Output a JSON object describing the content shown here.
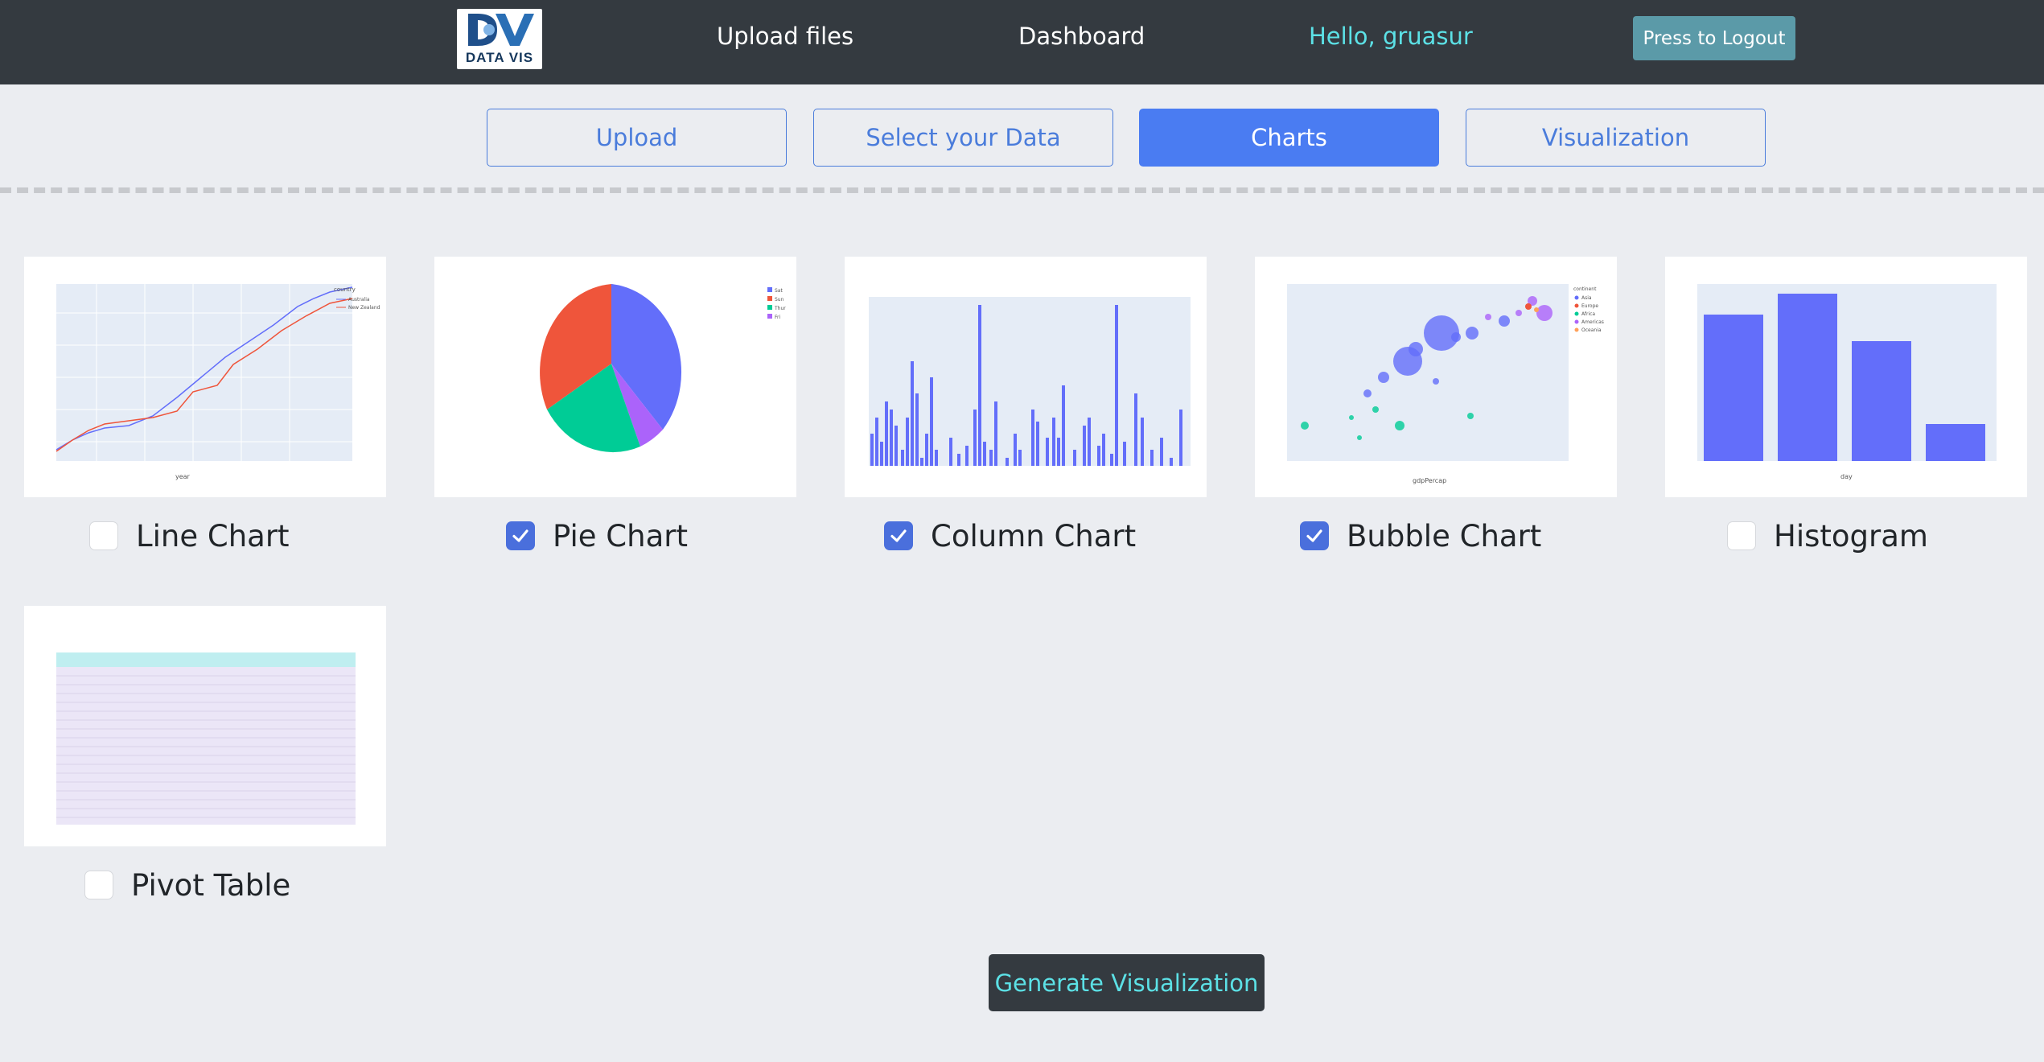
{
  "navbar": {
    "logo_text": "DATA VIS",
    "links": [
      "Upload files",
      "Dashboard"
    ],
    "greeting": "Hello, gruasur",
    "logout_label": "Press to Logout"
  },
  "steps": [
    {
      "label": "Upload",
      "active": false
    },
    {
      "label": "Select your Data",
      "active": false
    },
    {
      "label": "Charts",
      "active": true
    },
    {
      "label": "Visualization",
      "active": false
    }
  ],
  "charts": [
    {
      "label": "Line Chart",
      "checked": false
    },
    {
      "label": "Pie Chart",
      "checked": true
    },
    {
      "label": "Column Chart",
      "checked": true
    },
    {
      "label": "Bubble Chart",
      "checked": true
    },
    {
      "label": "Histogram",
      "checked": false
    },
    {
      "label": "Pivot Table",
      "checked": false
    }
  ],
  "generate_label": "Generate Visualization",
  "colors": {
    "navbar": "#343a40",
    "accent": "#4a7cf2",
    "cyan": "#5ce1e6",
    "plot_blue": "#636efa",
    "plot_red": "#ef553b",
    "plot_green": "#00cc96",
    "plot_purple": "#ab63fa"
  },
  "icons": {
    "check": "check-icon"
  }
}
